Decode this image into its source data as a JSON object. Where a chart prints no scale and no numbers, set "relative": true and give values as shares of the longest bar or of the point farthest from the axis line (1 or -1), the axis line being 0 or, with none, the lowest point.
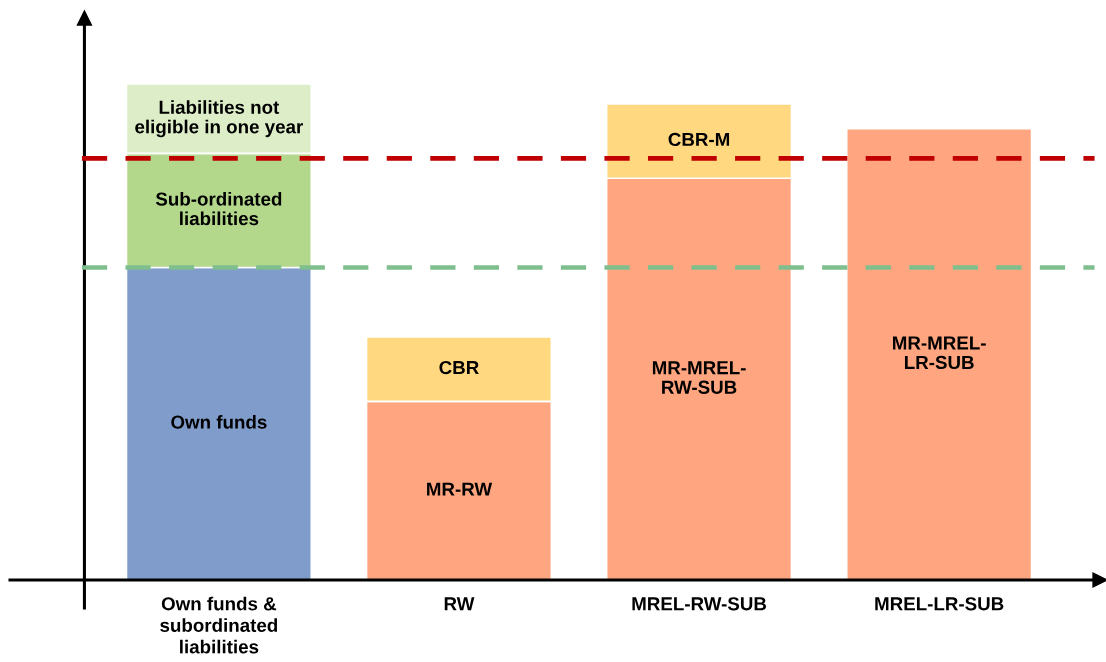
{
  "chart_data": {
    "type": "bar",
    "stacked": true,
    "relative": true,
    "tick_labels": "x",
    "categories": [
      "Own funds &\nsubordinated\nliabilities",
      "RW",
      "MREL-RW-SUB",
      "MREL-LR-SUB"
    ],
    "series": [
      {
        "name": "Own funds",
        "color": "#7f9ccb",
        "values": [
          0.63,
          null,
          null,
          null
        ]
      },
      {
        "name": "Sub-ordinated\nliabilities",
        "color": "#b3d88b",
        "values": [
          0.23,
          null,
          null,
          null
        ]
      },
      {
        "name": "Liabilities not\neligible in one year",
        "color": "#dcedc8",
        "values": [
          0.14,
          null,
          null,
          null
        ]
      },
      {
        "name": "MR-RW",
        "color": "#ffa57f",
        "values": [
          null,
          0.36,
          null,
          null
        ]
      },
      {
        "name": "CBR",
        "color": "#ffd880",
        "values": [
          null,
          0.13,
          null,
          null
        ]
      },
      {
        "name": "MR-MREL-\nRW-SUB",
        "color": "#ffa57f",
        "values": [
          null,
          null,
          0.81,
          null
        ]
      },
      {
        "name": "CBR-M",
        "color": "#ffd880",
        "values": [
          null,
          null,
          0.15,
          null
        ]
      },
      {
        "name": "MR-MREL-\nLR-SUB",
        "color": "#ffa57f",
        "values": [
          null,
          null,
          null,
          0.91
        ]
      }
    ],
    "ref_lines": [
      {
        "axis": "y",
        "value": 0.85,
        "color": "#c00000",
        "line_style": "dashed"
      },
      {
        "axis": "y",
        "value": 0.63,
        "color": "#7fbf8e",
        "line_style": "dashed"
      }
    ]
  }
}
